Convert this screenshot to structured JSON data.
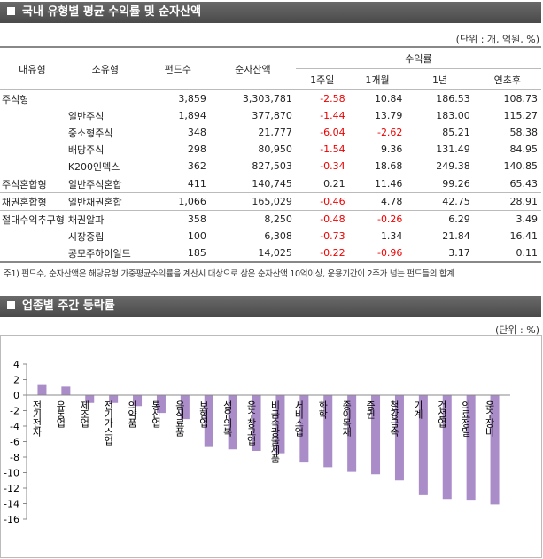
{
  "table_section": {
    "title": "국내 유형별 평균 수익률 및 순자산액",
    "unit_label": "(단위 : 개, 억원, %)",
    "header": [
      "대유형",
      "소유형",
      "펀드수",
      "순자산액",
      "수익률"
    ],
    "subheader": [
      "1주일",
      "1개월",
      "1년",
      "연초후"
    ],
    "rows": [
      [
        "주식형",
        null,
        "3,859",
        "3,303,781",
        "-2.58",
        "10.84",
        "186.53",
        "108.73"
      ],
      [
        null,
        "일반주식",
        "1,894",
        "377,870",
        "-1.44",
        "13.79",
        "183.00",
        "115.27"
      ],
      [
        null,
        "중소형주식",
        "348",
        "21,777",
        "-6.04",
        "-2.62",
        "85.21",
        "58.38"
      ],
      [
        null,
        "배당주식",
        "298",
        "80,950",
        "-1.54",
        "9.36",
        "131.49",
        "84.95"
      ],
      [
        null,
        "K200인덱스",
        "362",
        "827,503",
        "-0.34",
        "18.68",
        "249.38",
        "140.85"
      ],
      [
        "주식혼합형",
        "일반주식혼합",
        "411",
        "140,745",
        "0.21",
        "11.46",
        "99.26",
        "65.43"
      ],
      [
        "채권혼합형",
        "일반채권혼합",
        "1,066",
        "165,029",
        "-0.46",
        "4.78",
        "42.75",
        "28.91"
      ],
      [
        "절대수익추구형",
        "채권알파",
        "358",
        "8,250",
        "-0.48",
        "-0.26",
        "6.29",
        "3.49"
      ],
      [
        null,
        "시장중립",
        "100",
        "6,308",
        "-0.73",
        "1.34",
        "21.84",
        "16.41"
      ],
      [
        null,
        "공모주하이일드",
        "185",
        "14,025",
        "-0.22",
        "-0.96",
        "3.17",
        "0.11"
      ]
    ],
    "footnote": "주1) 펀드수, 순자산액은 해당유형 가중평균수익률을 계산시 대상으로 삼은 순자산액 10억이상, 운용기간이 2주가 넘는 펀드들의 합계"
  },
  "chart_data": {
    "type": "bar",
    "title": "업종별 주간 등락률",
    "unit_label": "(단위 : %)",
    "categories": [
      "전기전자",
      "유통업",
      "제조업",
      "전기가스업",
      "의약품",
      "통신업",
      "음식료품",
      "보험업",
      "섬유의복",
      "운수창고업",
      "비금속광물제품",
      "서비스업",
      "화학",
      "종이목재",
      "증권",
      "철강금속",
      "기계",
      "건설업",
      "의료정밀",
      "운수장비"
    ],
    "values": [
      1.3,
      1.1,
      -1.0,
      -1.0,
      -1.4,
      -2.3,
      -3.1,
      -6.7,
      -7.0,
      -7.2,
      -7.5,
      -8.7,
      -9.3,
      -9.9,
      -10.2,
      -11.0,
      -12.9,
      -13.4,
      -13.5,
      -14.1
    ],
    "color": "#a98cc8",
    "ylim": [
      -16,
      4
    ],
    "yticks": [
      4,
      2,
      0,
      -2,
      -4,
      -6,
      -8,
      -10,
      -12,
      -14,
      -16
    ]
  }
}
